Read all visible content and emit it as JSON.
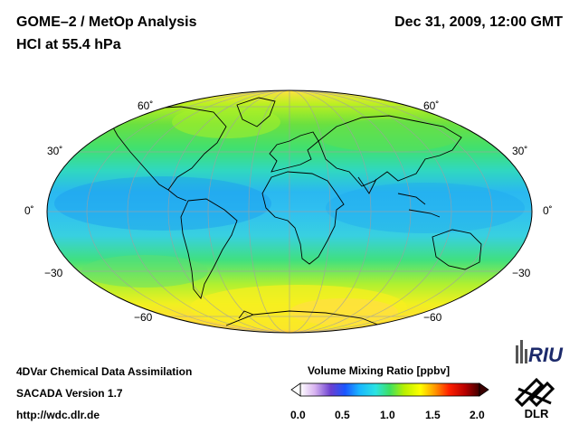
{
  "header": {
    "title_line1": "GOME–2 / MetOp Analysis",
    "title_line2": "HCl at 55.4 hPa",
    "datetime": "Dec 31, 2009, 12:00 GMT"
  },
  "map": {
    "projection": "Mollweide",
    "latitude_labels_left": [
      "60˚",
      "30˚",
      "0˚",
      "−30",
      "−60"
    ],
    "latitude_labels_right": [
      "60˚",
      "30˚",
      "0˚",
      "−30",
      "−60"
    ]
  },
  "colorbar": {
    "title": "Volume Mixing Ratio [ppbv]",
    "tick_labels": [
      "0.0",
      "0.5",
      "1.0",
      "1.5",
      "2.0"
    ],
    "range": [
      0.0,
      2.0
    ],
    "colors": [
      "#ffffff",
      "#d8b4f0",
      "#6a3fd0",
      "#1a56ff",
      "#19b6ff",
      "#2be3e3",
      "#3fe060",
      "#b8f000",
      "#ffff00",
      "#ff9a00",
      "#ff2000",
      "#b80000",
      "#400000"
    ]
  },
  "footer": {
    "line1": "4DVar Chemical Data Assimilation",
    "line2": "SACADA Version 1.7",
    "line3": "http://wdc.dlr.de"
  },
  "logos": {
    "riu_text": "RIU",
    "dlr_text": "DLR"
  }
}
